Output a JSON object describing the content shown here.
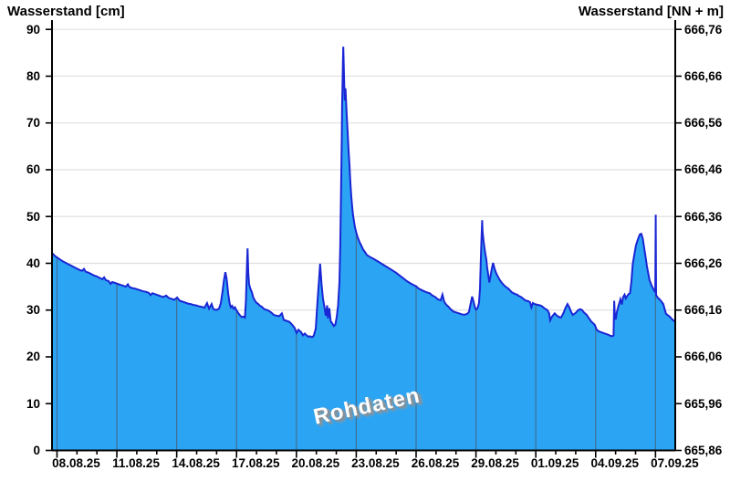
{
  "chart": {
    "type": "area",
    "title_left": "Wasserstand [cm]",
    "title_right": "Wasserstand [NN + m]",
    "watermark": "Rohdaten",
    "colors": {
      "area_fill": "#2ba4f4",
      "area_stroke": "#1a25d4",
      "h_gridline": "#e0e0e0",
      "v_gridline_on_fill": "#3f6f93",
      "axis": "#000000",
      "watermark_text": "#fdfdfd",
      "watermark_shadow": "#8d8d8d"
    },
    "left_axis": {
      "unit": "cm",
      "tick_values": [
        0,
        10,
        20,
        30,
        40,
        50,
        60,
        70,
        80,
        90
      ],
      "range": [
        0,
        90
      ]
    },
    "right_axis": {
      "unit": "NN + m",
      "tick_labels_bottom_to_top": [
        "665,86",
        "665,96",
        "666,06",
        "666,16",
        "666,26",
        "666,36",
        "666,46",
        "666,56",
        "666,66",
        "666,76"
      ]
    },
    "x_axis": {
      "date_labels": [
        "08.08.25",
        "11.08.25",
        "14.08.25",
        "17.08.25",
        "20.08.25",
        "23.08.25",
        "26.08.25",
        "29.08.25",
        "01.09.25",
        "04.09.25",
        "07.09.25"
      ],
      "minor_tick_interval_days": 1,
      "major_tick_interval_days": 3,
      "first_major_gridline_day_offset": 0.25,
      "total_days_shown": 31.24
    },
    "chart_data": {
      "type": "area",
      "title": "Wasserstand Rohdaten",
      "ylabel_left": "Wasserstand [cm]",
      "ylabel_right": "Wasserstand [NN + m]",
      "ylim_cm": [
        0,
        90
      ],
      "ylim_nnm": [
        665.86,
        666.76
      ],
      "grid": "horizontal-light; vertical-over-fill-every-3-days",
      "series_name": "Rohdaten",
      "x_unit": "days_from_left_edge",
      "y_unit": "cm",
      "points": [
        [
          0,
          42.2
        ],
        [
          0.14,
          41.6
        ],
        [
          0.27,
          41.2
        ],
        [
          0.41,
          40.8
        ],
        [
          0.55,
          40.4
        ],
        [
          0.69,
          40.1
        ],
        [
          0.82,
          39.8
        ],
        [
          0.96,
          39.5
        ],
        [
          1.1,
          39.2
        ],
        [
          1.23,
          38.9
        ],
        [
          1.37,
          38.6
        ],
        [
          1.51,
          38.4
        ],
        [
          1.6,
          38.8
        ],
        [
          1.69,
          38.2
        ],
        [
          1.83,
          38.0
        ],
        [
          1.97,
          37.7
        ],
        [
          2.1,
          37.4
        ],
        [
          2.24,
          37.2
        ],
        [
          2.38,
          36.9
        ],
        [
          2.52,
          36.6
        ],
        [
          2.61,
          37.0
        ],
        [
          2.7,
          36.4
        ],
        [
          2.84,
          36.2
        ],
        [
          2.93,
          35.6
        ],
        [
          3.02,
          36.0
        ],
        [
          3.16,
          35.8
        ],
        [
          3.29,
          35.6
        ],
        [
          3.43,
          35.4
        ],
        [
          3.57,
          35.2
        ],
        [
          3.7,
          35.0
        ],
        [
          3.8,
          35.5
        ],
        [
          3.89,
          34.9
        ],
        [
          4.02,
          34.7
        ],
        [
          4.16,
          34.6
        ],
        [
          4.3,
          34.4
        ],
        [
          4.44,
          34.2
        ],
        [
          4.57,
          34.0
        ],
        [
          4.71,
          33.9
        ],
        [
          4.85,
          33.7
        ],
        [
          4.94,
          33.2
        ],
        [
          5.03,
          33.6
        ],
        [
          5.17,
          33.4
        ],
        [
          5.3,
          33.2
        ],
        [
          5.44,
          33.0
        ],
        [
          5.58,
          32.8
        ],
        [
          5.72,
          33.1
        ],
        [
          5.85,
          32.6
        ],
        [
          5.99,
          32.4
        ],
        [
          6.13,
          32.2
        ],
        [
          6.27,
          32.7
        ],
        [
          6.4,
          32.0
        ],
        [
          6.54,
          31.8
        ],
        [
          6.68,
          31.6
        ],
        [
          6.81,
          31.4
        ],
        [
          6.95,
          31.3
        ],
        [
          7.09,
          31.1
        ],
        [
          7.23,
          31.0
        ],
        [
          7.36,
          30.8
        ],
        [
          7.5,
          30.7
        ],
        [
          7.64,
          30.5
        ],
        [
          7.77,
          31.5
        ],
        [
          7.87,
          30.3
        ],
        [
          8.0,
          31.3
        ],
        [
          8.09,
          30.2
        ],
        [
          8.23,
          30.0
        ],
        [
          8.37,
          30.3
        ],
        [
          8.46,
          31.5
        ],
        [
          8.55,
          34.0
        ],
        [
          8.62,
          36.5
        ],
        [
          8.69,
          38.1
        ],
        [
          8.76,
          36.5
        ],
        [
          8.83,
          33.5
        ],
        [
          8.9,
          31.5
        ],
        [
          8.96,
          30.6
        ],
        [
          9.03,
          30.9
        ],
        [
          9.1,
          30.3
        ],
        [
          9.17,
          30.6
        ],
        [
          9.24,
          30.0
        ],
        [
          9.33,
          29.4
        ],
        [
          9.42,
          28.9
        ],
        [
          9.51,
          28.5
        ],
        [
          9.6,
          28.6
        ],
        [
          9.67,
          28.4
        ],
        [
          9.72,
          32.0
        ],
        [
          9.76,
          38.0
        ],
        [
          9.8,
          43.2
        ],
        [
          9.84,
          38.0
        ],
        [
          9.88,
          35.5
        ],
        [
          9.95,
          34.5
        ],
        [
          10.02,
          33.8
        ],
        [
          10.08,
          32.8
        ],
        [
          10.15,
          32.2
        ],
        [
          10.24,
          31.6
        ],
        [
          10.34,
          31.3
        ],
        [
          10.43,
          30.9
        ],
        [
          10.52,
          30.7
        ],
        [
          10.61,
          30.3
        ],
        [
          10.7,
          30.1
        ],
        [
          10.79,
          30.0
        ],
        [
          10.88,
          29.8
        ],
        [
          10.98,
          29.5
        ],
        [
          11.11,
          29.0
        ],
        [
          11.25,
          28.8
        ],
        [
          11.39,
          28.7
        ],
        [
          11.52,
          29.3
        ],
        [
          11.62,
          27.9
        ],
        [
          11.75,
          27.7
        ],
        [
          11.89,
          27.5
        ],
        [
          12.03,
          26.9
        ],
        [
          12.16,
          26.2
        ],
        [
          12.26,
          25.1
        ],
        [
          12.35,
          25.8
        ],
        [
          12.48,
          25.3
        ],
        [
          12.58,
          24.6
        ],
        [
          12.67,
          25.0
        ],
        [
          12.76,
          24.6
        ],
        [
          12.85,
          24.3
        ],
        [
          12.94,
          24.4
        ],
        [
          13.03,
          24.2
        ],
        [
          13.12,
          24.5
        ],
        [
          13.22,
          26.0
        ],
        [
          13.31,
          32.0
        ],
        [
          13.4,
          37.5
        ],
        [
          13.44,
          39.9
        ],
        [
          13.51,
          35.5
        ],
        [
          13.58,
          32.5
        ],
        [
          13.65,
          30.8
        ],
        [
          13.72,
          28.8
        ],
        [
          13.79,
          31.0
        ],
        [
          13.83,
          28.2
        ],
        [
          13.9,
          30.4
        ],
        [
          13.97,
          27.6
        ],
        [
          14.04,
          27.2
        ],
        [
          14.13,
          26.6
        ],
        [
          14.2,
          26.9
        ],
        [
          14.27,
          28.5
        ],
        [
          14.34,
          31.0
        ],
        [
          14.41,
          36.0
        ],
        [
          14.45,
          44.0
        ],
        [
          14.49,
          56.0
        ],
        [
          14.52,
          66.0
        ],
        [
          14.54,
          74.0
        ],
        [
          14.57,
          79.5
        ],
        [
          14.58,
          83.0
        ],
        [
          14.6,
          86.3
        ],
        [
          14.63,
          81.0
        ],
        [
          14.66,
          76.5
        ],
        [
          14.68,
          74.8
        ],
        [
          14.71,
          77.4
        ],
        [
          14.74,
          74.5
        ],
        [
          14.77,
          72.0
        ],
        [
          14.82,
          68.0
        ],
        [
          14.86,
          64.5
        ],
        [
          14.91,
          61.0
        ],
        [
          14.95,
          57.5
        ],
        [
          15.0,
          54.5
        ],
        [
          15.05,
          52.0
        ],
        [
          15.09,
          50.3
        ],
        [
          15.14,
          48.9
        ],
        [
          15.18,
          47.8
        ],
        [
          15.25,
          46.6
        ],
        [
          15.32,
          45.6
        ],
        [
          15.41,
          44.6
        ],
        [
          15.5,
          43.8
        ],
        [
          15.59,
          43.0
        ],
        [
          15.69,
          42.4
        ],
        [
          15.78,
          41.8
        ],
        [
          15.96,
          41.3
        ],
        [
          16.14,
          40.9
        ],
        [
          16.37,
          40.3
        ],
        [
          16.6,
          39.7
        ],
        [
          16.83,
          39.1
        ],
        [
          17.06,
          38.5
        ],
        [
          17.24,
          38.0
        ],
        [
          17.42,
          37.4
        ],
        [
          17.61,
          36.8
        ],
        [
          17.79,
          36.2
        ],
        [
          17.97,
          35.7
        ],
        [
          18.11,
          35.4
        ],
        [
          18.25,
          35.1
        ],
        [
          18.38,
          34.6
        ],
        [
          18.52,
          34.3
        ],
        [
          18.66,
          34.0
        ],
        [
          18.79,
          33.8
        ],
        [
          18.93,
          33.6
        ],
        [
          19.07,
          33.1
        ],
        [
          19.21,
          32.8
        ],
        [
          19.34,
          32.3
        ],
        [
          19.48,
          32.1
        ],
        [
          19.57,
          33.3
        ],
        [
          19.66,
          31.8
        ],
        [
          19.75,
          31.2
        ],
        [
          19.85,
          30.8
        ],
        [
          19.98,
          30.2
        ],
        [
          20.12,
          29.7
        ],
        [
          20.26,
          29.5
        ],
        [
          20.4,
          29.3
        ],
        [
          20.53,
          29.1
        ],
        [
          20.67,
          29.0
        ],
        [
          20.81,
          29.2
        ],
        [
          20.9,
          29.6
        ],
        [
          20.99,
          31.5
        ],
        [
          21.06,
          32.9
        ],
        [
          21.13,
          31.8
        ],
        [
          21.2,
          30.6
        ],
        [
          21.26,
          30.1
        ],
        [
          21.33,
          30.4
        ],
        [
          21.4,
          31.5
        ],
        [
          21.45,
          34.5
        ],
        [
          21.49,
          40.0
        ],
        [
          21.53,
          45.5
        ],
        [
          21.56,
          49.2
        ],
        [
          21.58,
          47.0
        ],
        [
          21.63,
          44.8
        ],
        [
          21.68,
          43.2
        ],
        [
          21.72,
          42.0
        ],
        [
          21.77,
          40.8
        ],
        [
          21.81,
          39.2
        ],
        [
          21.86,
          37.8
        ],
        [
          21.92,
          35.9
        ],
        [
          21.97,
          37.0
        ],
        [
          22.04,
          38.8
        ],
        [
          22.11,
          40.1
        ],
        [
          22.18,
          38.9
        ],
        [
          22.25,
          38.0
        ],
        [
          22.32,
          37.4
        ],
        [
          22.41,
          36.7
        ],
        [
          22.5,
          36.1
        ],
        [
          22.59,
          35.6
        ],
        [
          22.68,
          35.2
        ],
        [
          22.77,
          34.9
        ],
        [
          22.87,
          34.6
        ],
        [
          22.96,
          34.2
        ],
        [
          23.05,
          33.8
        ],
        [
          23.14,
          33.6
        ],
        [
          23.23,
          33.4
        ],
        [
          23.32,
          33.3
        ],
        [
          23.41,
          33.0
        ],
        [
          23.51,
          32.8
        ],
        [
          23.6,
          32.5
        ],
        [
          23.69,
          32.2
        ],
        [
          23.78,
          32.0
        ],
        [
          23.87,
          31.9
        ],
        [
          23.96,
          31.7
        ],
        [
          24.03,
          30.6
        ],
        [
          24.1,
          31.5
        ],
        [
          24.19,
          31.3
        ],
        [
          24.28,
          31.2
        ],
        [
          24.37,
          31.1
        ],
        [
          24.47,
          31.0
        ],
        [
          24.56,
          30.8
        ],
        [
          24.65,
          30.5
        ],
        [
          24.74,
          30.2
        ],
        [
          24.83,
          30.0
        ],
        [
          24.92,
          29.3
        ],
        [
          24.97,
          27.8
        ],
        [
          25.06,
          28.6
        ],
        [
          25.2,
          29.3
        ],
        [
          25.29,
          28.9
        ],
        [
          25.42,
          28.5
        ],
        [
          25.52,
          28.4
        ],
        [
          25.65,
          29.5
        ],
        [
          25.74,
          30.5
        ],
        [
          25.84,
          31.3
        ],
        [
          25.93,
          30.6
        ],
        [
          26.02,
          29.6
        ],
        [
          26.11,
          29.0
        ],
        [
          26.25,
          29.4
        ],
        [
          26.38,
          30.0
        ],
        [
          26.48,
          30.2
        ],
        [
          26.57,
          30.0
        ],
        [
          26.66,
          29.5
        ],
        [
          26.8,
          29.0
        ],
        [
          26.89,
          28.4
        ],
        [
          27.02,
          27.6
        ],
        [
          27.12,
          27.2
        ],
        [
          27.21,
          26.8
        ],
        [
          27.3,
          25.8
        ],
        [
          27.44,
          25.4
        ],
        [
          27.57,
          25.2
        ],
        [
          27.71,
          25.0
        ],
        [
          27.85,
          24.8
        ],
        [
          27.99,
          24.5
        ],
        [
          28.08,
          24.4
        ],
        [
          28.15,
          24.6
        ],
        [
          28.18,
          32.0
        ],
        [
          28.21,
          29.0
        ],
        [
          28.26,
          28.0
        ],
        [
          28.31,
          29.5
        ],
        [
          28.4,
          31.0
        ],
        [
          28.49,
          32.3
        ],
        [
          28.56,
          31.2
        ],
        [
          28.63,
          32.8
        ],
        [
          28.7,
          33.3
        ],
        [
          28.76,
          32.5
        ],
        [
          28.83,
          33.0
        ],
        [
          28.9,
          33.4
        ],
        [
          28.97,
          33.6
        ],
        [
          29.04,
          36.0
        ],
        [
          29.11,
          39.8
        ],
        [
          29.18,
          41.7
        ],
        [
          29.27,
          43.8
        ],
        [
          29.34,
          44.8
        ],
        [
          29.41,
          45.6
        ],
        [
          29.47,
          46.2
        ],
        [
          29.54,
          46.3
        ],
        [
          29.61,
          45.3
        ],
        [
          29.68,
          43.4
        ],
        [
          29.75,
          41.5
        ],
        [
          29.82,
          39.3
        ],
        [
          29.89,
          37.8
        ],
        [
          29.95,
          36.4
        ],
        [
          30.05,
          35.3
        ],
        [
          30.14,
          34.5
        ],
        [
          30.21,
          34.0
        ],
        [
          30.24,
          33.8
        ],
        [
          30.26,
          50.4
        ],
        [
          30.28,
          33.2
        ],
        [
          30.37,
          32.6
        ],
        [
          30.46,
          32.3
        ],
        [
          30.55,
          31.8
        ],
        [
          30.64,
          31.3
        ],
        [
          30.71,
          30.2
        ],
        [
          30.78,
          29.2
        ],
        [
          30.87,
          28.9
        ],
        [
          30.96,
          28.6
        ],
        [
          31.05,
          28.2
        ],
        [
          31.14,
          27.8
        ],
        [
          31.24,
          27.5
        ]
      ]
    }
  }
}
